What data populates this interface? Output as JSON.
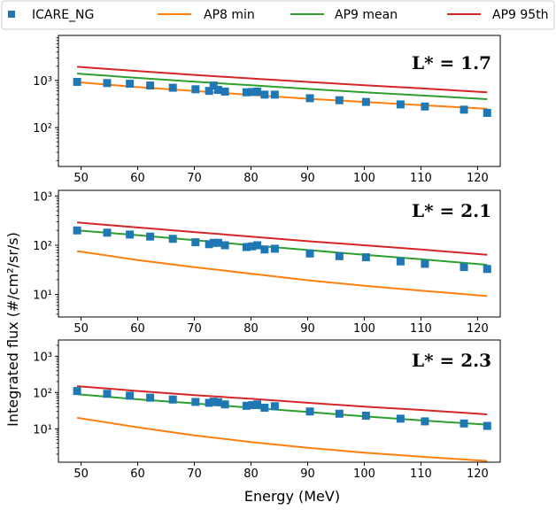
{
  "chart_data": {
    "type": "line",
    "xlabel": "Energy (MeV)",
    "ylabel": "Integrated flux (#/cm²/sr/s)",
    "xlim": [
      46,
      124
    ],
    "x_ticks": [
      "50",
      "60",
      "70",
      "80",
      "90",
      "100",
      "110",
      "120"
    ],
    "y_scale": "log",
    "legend": {
      "placement": "top",
      "entries": [
        {
          "name": "ICARE_NG",
          "marker": "square",
          "color": "#1f77b4"
        },
        {
          "name": "AP8 min",
          "marker": "line",
          "color": "#ff7f0e"
        },
        {
          "name": "AP9 mean",
          "marker": "line",
          "color": "#2ca02c"
        },
        {
          "name": "AP9 95th",
          "marker": "line",
          "color": "#d62728"
        }
      ]
    },
    "panels": [
      {
        "label": "L* = 1.7",
        "ylim": [
          15,
          9000
        ],
        "y_ticks": [
          {
            "value": 100,
            "label": "10²"
          },
          {
            "value": 1000,
            "label": "10³"
          }
        ],
        "series": [
          {
            "name": "ICARE_NG",
            "style": "markers",
            "color": "#1f77b4",
            "x": [
              49.3,
              54.6,
              58.6,
              62.2,
              66.2,
              70.2,
              72.6,
              73.4,
              74.2,
              75.4,
              79.2,
              80.2,
              81.1,
              82.4,
              84.2,
              90.4,
              95.6,
              100.3,
              106.4,
              110.7,
              117.6,
              121.7
            ],
            "y": [
              930,
              880,
              850,
              780,
              700,
              650,
              600,
              780,
              630,
              580,
              560,
              570,
              580,
              500,
              500,
              420,
              380,
              350,
              310,
              280,
              240,
              205
            ]
          },
          {
            "name": "AP8 min",
            "style": "line",
            "color": "#ff7f0e",
            "x": [
              49.3,
              60,
              70,
              80,
              90,
              100,
              110,
              121.7
            ],
            "y": [
              920,
              720,
              600,
              490,
              410,
              350,
              300,
              250
            ]
          },
          {
            "name": "AP9 mean",
            "style": "line",
            "color": "#2ca02c",
            "x": [
              49.3,
              60,
              70,
              80,
              90,
              100,
              110,
              121.7
            ],
            "y": [
              1400,
              1130,
              940,
              790,
              660,
              560,
              480,
              400
            ]
          },
          {
            "name": "AP9 95th",
            "style": "line",
            "color": "#d62728",
            "x": [
              49.3,
              60,
              70,
              80,
              90,
              100,
              110,
              121.7
            ],
            "y": [
              1950,
              1580,
              1310,
              1100,
              930,
              790,
              680,
              560
            ]
          }
        ]
      },
      {
        "label": "L* = 2.1",
        "ylim": [
          3.5,
          1300
        ],
        "y_ticks": [
          {
            "value": 10,
            "label": "10¹"
          },
          {
            "value": 100,
            "label": "10²"
          },
          {
            "value": 1000,
            "label": "10³"
          }
        ],
        "series": [
          {
            "name": "ICARE_NG",
            "style": "markers",
            "color": "#1f77b4",
            "x": [
              49.3,
              54.6,
              58.6,
              62.2,
              66.2,
              70.2,
              72.6,
              73.4,
              74.2,
              75.4,
              79.2,
              80.2,
              81.1,
              82.4,
              84.2,
              90.4,
              95.6,
              100.3,
              106.4,
              110.7,
              117.6,
              121.7
            ],
            "y": [
              200,
              180,
              165,
              150,
              135,
              115,
              105,
              112,
              112,
              100,
              92,
              95,
              100,
              82,
              85,
              68,
              60,
              57,
              47,
              42,
              36,
              33
            ]
          },
          {
            "name": "AP8 min",
            "style": "line",
            "color": "#ff7f0e",
            "x": [
              49.3,
              60,
              70,
              80,
              90,
              100,
              110,
              121.7
            ],
            "y": [
              76,
              50,
              36,
              26.5,
              19.5,
              15,
              12,
              9.3
            ]
          },
          {
            "name": "AP9 mean",
            "style": "line",
            "color": "#2ca02c",
            "x": [
              49.3,
              60,
              70,
              80,
              90,
              100,
              110,
              121.7
            ],
            "y": [
              200,
              160,
              127,
              100,
              80,
              64,
              52,
              40
            ]
          },
          {
            "name": "AP9 95th",
            "style": "line",
            "color": "#d62728",
            "x": [
              49.3,
              60,
              70,
              80,
              90,
              100,
              110,
              121.7
            ],
            "y": [
              290,
              230,
              185,
              150,
              121,
              100,
              82,
              64
            ]
          }
        ]
      },
      {
        "label": "L* = 2.3",
        "ylim": [
          1.2,
          2800
        ],
        "y_ticks": [
          {
            "value": 10,
            "label": "10¹"
          },
          {
            "value": 100,
            "label": "10²"
          },
          {
            "value": 1000,
            "label": "10³"
          }
        ],
        "series": [
          {
            "name": "ICARE_NG",
            "style": "markers",
            "color": "#1f77b4",
            "x": [
              49.3,
              54.6,
              58.6,
              62.2,
              66.2,
              70.2,
              72.6,
              73.4,
              74.2,
              75.4,
              79.2,
              80.2,
              81.1,
              82.4,
              84.2,
              90.4,
              95.6,
              100.3,
              106.4,
              110.7,
              117.6,
              121.7
            ],
            "y": [
              110,
              92,
              82,
              72,
              64,
              55,
              52,
              56,
              54,
              47,
              43,
              45,
              47,
              38,
              42,
              30,
              26,
              23,
              19,
              16,
              14,
              12
            ]
          },
          {
            "name": "AP8 min",
            "style": "line",
            "color": "#ff7f0e",
            "x": [
              49.3,
              60,
              70,
              80,
              90,
              100,
              110,
              121.7
            ],
            "y": [
              20,
              11,
              6.6,
              4.3,
              3.0,
              2.2,
              1.7,
              1.3
            ]
          },
          {
            "name": "AP9 mean",
            "style": "line",
            "color": "#2ca02c",
            "x": [
              49.3,
              60,
              70,
              80,
              90,
              100,
              110,
              121.7
            ],
            "y": [
              90,
              65,
              50,
              38,
              29,
              22,
              17,
              13
            ]
          },
          {
            "name": "AP9 95th",
            "style": "line",
            "color": "#d62728",
            "x": [
              49.3,
              60,
              70,
              80,
              90,
              100,
              110,
              121.7
            ],
            "y": [
              150,
              110,
              85,
              67,
              52,
              41,
              33,
              25
            ]
          }
        ]
      }
    ]
  }
}
